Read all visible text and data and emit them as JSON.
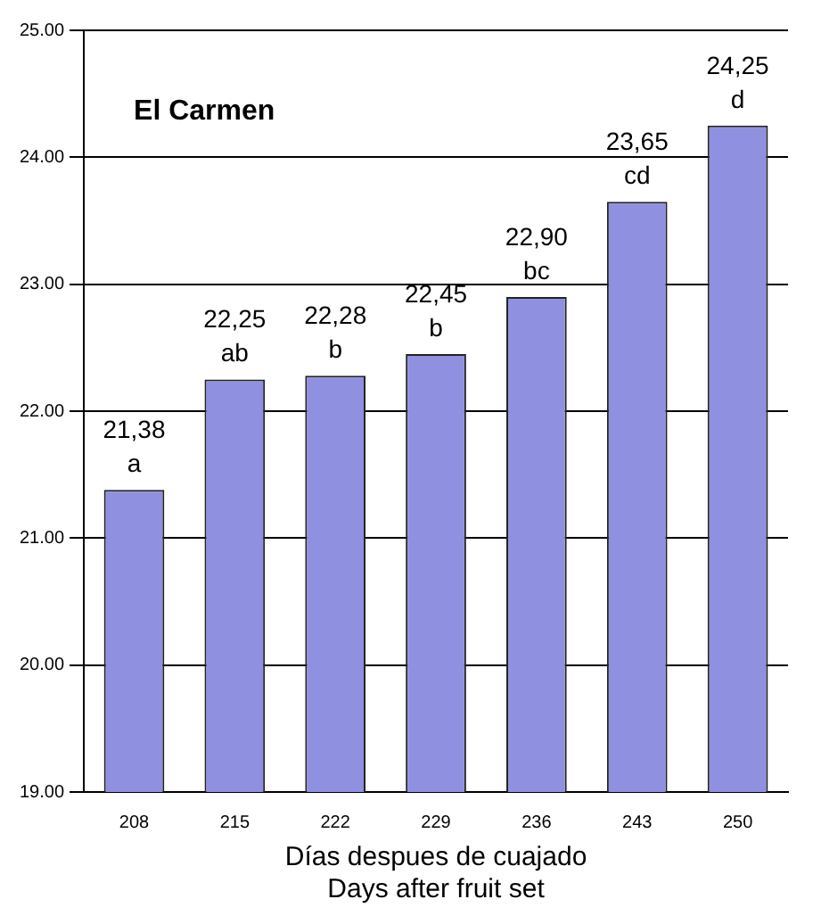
{
  "chart_data": {
    "type": "bar",
    "title": "El Carmen",
    "xlabel": "Días despues de cuajado\nDays after fruit set",
    "categories": [
      "208",
      "215",
      "222",
      "229",
      "236",
      "243",
      "250"
    ],
    "values": [
      21.38,
      22.25,
      22.28,
      22.45,
      22.9,
      23.65,
      24.25
    ],
    "value_labels": [
      "21,38\na",
      "22,25\nab",
      "22,28\nb",
      "22,45\nb",
      "22,90\nbc",
      "23,65\ncd",
      "24,25\nd"
    ],
    "color": "#9090e0",
    "ylim": [
      19,
      25
    ],
    "yticks": [
      {
        "value": 19,
        "label": "19.00"
      },
      {
        "value": 20,
        "label": "20.00"
      },
      {
        "value": 21,
        "label": "21.00"
      },
      {
        "value": 22,
        "label": "22.00"
      },
      {
        "value": 23,
        "label": "23.00"
      },
      {
        "value": 24,
        "label": "24.00"
      },
      {
        "value": 25,
        "label": "25.00"
      }
    ],
    "grid": "y",
    "legend": false
  }
}
